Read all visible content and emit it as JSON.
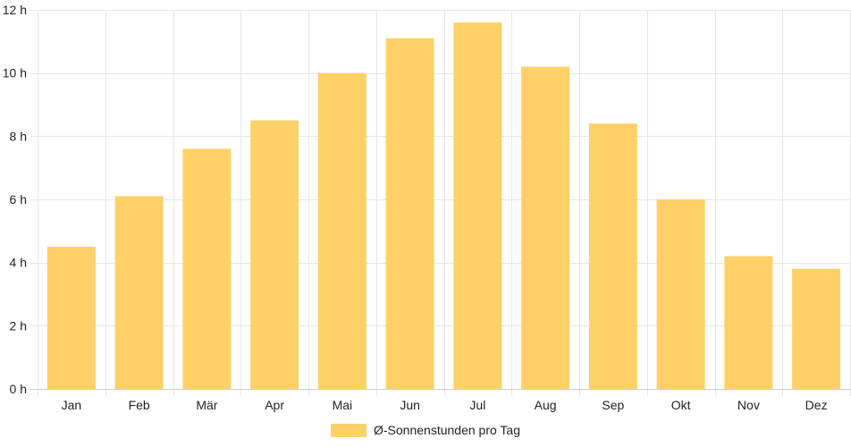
{
  "chart_data": {
    "type": "bar",
    "categories": [
      "Jan",
      "Feb",
      "Mär",
      "Apr",
      "Mai",
      "Jun",
      "Jul",
      "Aug",
      "Sep",
      "Okt",
      "Nov",
      "Dez"
    ],
    "series": [
      {
        "name": "Ø-Sonnenstunden pro Tag",
        "values": [
          4.5,
          6.1,
          7.6,
          8.5,
          10.0,
          11.1,
          11.6,
          10.2,
          8.4,
          6.0,
          4.2,
          3.8
        ],
        "color": "#fed068"
      }
    ],
    "ylim": [
      0,
      12
    ],
    "y_ticks": [
      0,
      2,
      4,
      6,
      8,
      10,
      12
    ],
    "y_tick_suffix": " h",
    "grid": true,
    "legend_position": "bottom",
    "grid_color": "#e6e6e6",
    "axis_color": "#cccccc"
  }
}
